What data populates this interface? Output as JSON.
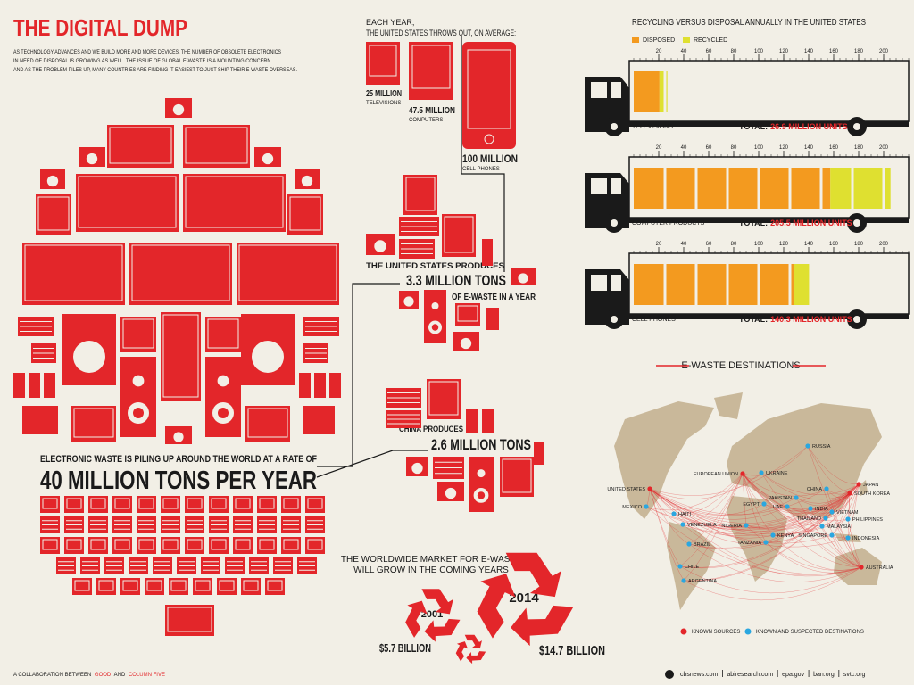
{
  "header": {
    "title": "THE DIGITAL DUMP",
    "intro": [
      "AS TECHNOLOGY ADVANCES AND WE BUILD MORE AND MORE DEVICES, THE NUMBER OF OBSOLETE ELECTRONICS",
      "IN NEED OF DISPOSAL IS GROWING AS WELL. THE ISSUE OF GLOBAL E-WASTE IS A MOUNTING CONCERN.",
      "AND AS THE PROBLEM PILES UP, MANY COUNTRIES ARE FINDING IT EASIEST TO JUST SHIP THEIR E-WASTE OVERSEAS."
    ]
  },
  "us_throws": {
    "heading": [
      "EACH YEAR,",
      "THE UNITED STATES THROWS OUT, ON AVERAGE:"
    ],
    "items": [
      {
        "amount": "25 MILLION",
        "label": "TELEVISIONS"
      },
      {
        "amount": "47.5 MILLION",
        "label": "COMPUTERS"
      },
      {
        "amount": "100 MILLION",
        "label": "CELL PHONES"
      }
    ]
  },
  "us_produces": {
    "lead": "THE UNITED STATES PRODUCES",
    "amount": "3.3 MILLION TONS",
    "tail": "OF E-WASTE IN A YEAR"
  },
  "china": {
    "lead": "CHINA PRODUCES",
    "amount": "2.6 MILLION TONS"
  },
  "world": {
    "lead": "ELECTRONIC WASTE IS PILING UP AROUND THE WORLD AT A RATE OF",
    "amount": "40 MILLION TONS PER YEAR"
  },
  "market": {
    "heading": [
      "THE WORLDWIDE MARKET FOR E-WASTE",
      "WILL GROW IN THE COMING YEARS"
    ],
    "years": [
      {
        "year": "2001",
        "amount": "$5.7 BILLION"
      },
      {
        "year": "2014",
        "amount": "$14.7 BILLION"
      }
    ]
  },
  "recycling": {
    "title": "RECYCLING VERSUS DISPOSAL ANNUALLY IN THE UNITED STATES",
    "series": [
      {
        "name": "DISPOSED",
        "color": "#f39a1f"
      },
      {
        "name": "RECYCLED",
        "color": "#dfe030"
      }
    ],
    "xlim": [
      0,
      220
    ],
    "xticks": [
      20,
      40,
      60,
      80,
      100,
      120,
      140,
      160,
      180,
      200
    ],
    "trucks": [
      {
        "name": "TELEVISIONS",
        "disposed": 20.6,
        "recycled": 6.3,
        "total_label": "TOTAL:",
        "total": "26.9 MILLION UNITS"
      },
      {
        "name": "COMPUTER PRODUCTS",
        "disposed": 157.3,
        "recycled": 48.2,
        "total_label": "TOTAL:",
        "total": "205.5 MILLION UNITS"
      },
      {
        "name": "CELL PHONES",
        "disposed": 128.5,
        "recycled": 11.8,
        "total_label": "TOTAL:",
        "total": "140.3 MILLION UNITS"
      }
    ]
  },
  "map": {
    "title": "E-WASTE DESTINATIONS",
    "source_color": "#e3262a",
    "destination_color": "#2aa7e0",
    "sources": [
      "UNITED STATES",
      "EUROPEAN UNION",
      "JAPAN",
      "SOUTH KOREA",
      "AUSTRALIA"
    ],
    "destinations": [
      "RUSSIA",
      "UKRAINE",
      "MEXICO",
      "HAITI",
      "VENEZUELA",
      "BRAZIL",
      "CHILE",
      "ARGENTINA",
      "NIGERIA",
      "EGYPT",
      "PAKISTAN",
      "UAE",
      "INDIA",
      "CHINA",
      "VIETNAM",
      "THAILAND",
      "PHILIPPINES",
      "MALAYSIA",
      "SINGAPORE",
      "INDONESIA",
      "KENYA",
      "TANZANIA"
    ],
    "legend": {
      "sources": "KNOWN SOURCES",
      "destinations": "KNOWN AND SUSPECTED DESTINATIONS"
    }
  },
  "footer": {
    "credit": [
      "A COLLABORATION BETWEEN",
      "GOOD",
      "AND",
      "COLUMN FIVE"
    ],
    "sources": [
      "cbsnews.com",
      "abiresearch.com",
      "epa.gov",
      "ban.org",
      "svtc.org"
    ]
  }
}
